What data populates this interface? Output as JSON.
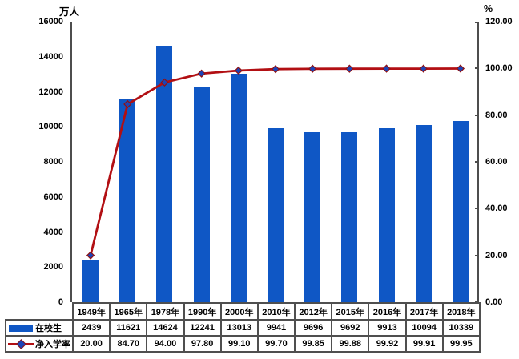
{
  "axes": {
    "left_title": "万人",
    "right_title": "%"
  },
  "colors": {
    "bar_blue": "#0F57C5",
    "line_red": "#B20F13",
    "marker_fill": "#1B44B8",
    "marker_stroke": "#8F1114",
    "axis_gray": "#4d4d4d"
  },
  "chart_data": {
    "type": "combo-bar-line",
    "categories": [
      "1949年",
      "1965年",
      "1978年",
      "1990年",
      "2000年",
      "2010年",
      "2012年",
      "2015年",
      "2016年",
      "2017年",
      "2018年"
    ],
    "series": [
      {
        "name": "在校生",
        "type": "bar",
        "axis": "left",
        "color": "#0F57C5",
        "values": [
          2439,
          11621,
          14624,
          12241,
          13013,
          9941,
          9696,
          9692,
          9913,
          10094,
          10339
        ]
      },
      {
        "name": "净入学率",
        "type": "line",
        "axis": "right",
        "color": "#B20F13",
        "marker": "diamond",
        "marker_fill": "#1B44B8",
        "marker_stroke": "#8F1114",
        "values": [
          20.0,
          84.7,
          94.0,
          97.8,
          99.1,
          99.7,
          99.85,
          99.88,
          99.92,
          99.91,
          99.95
        ]
      }
    ],
    "left_axis": {
      "title": "万人",
      "min": 0,
      "max": 16000,
      "tick_step": 2000,
      "decimals": 0
    },
    "right_axis": {
      "title": "%",
      "min": 0,
      "max": 120,
      "tick_step": 20,
      "decimals": 2
    },
    "grid": false,
    "legend_position": "table-left-header"
  }
}
